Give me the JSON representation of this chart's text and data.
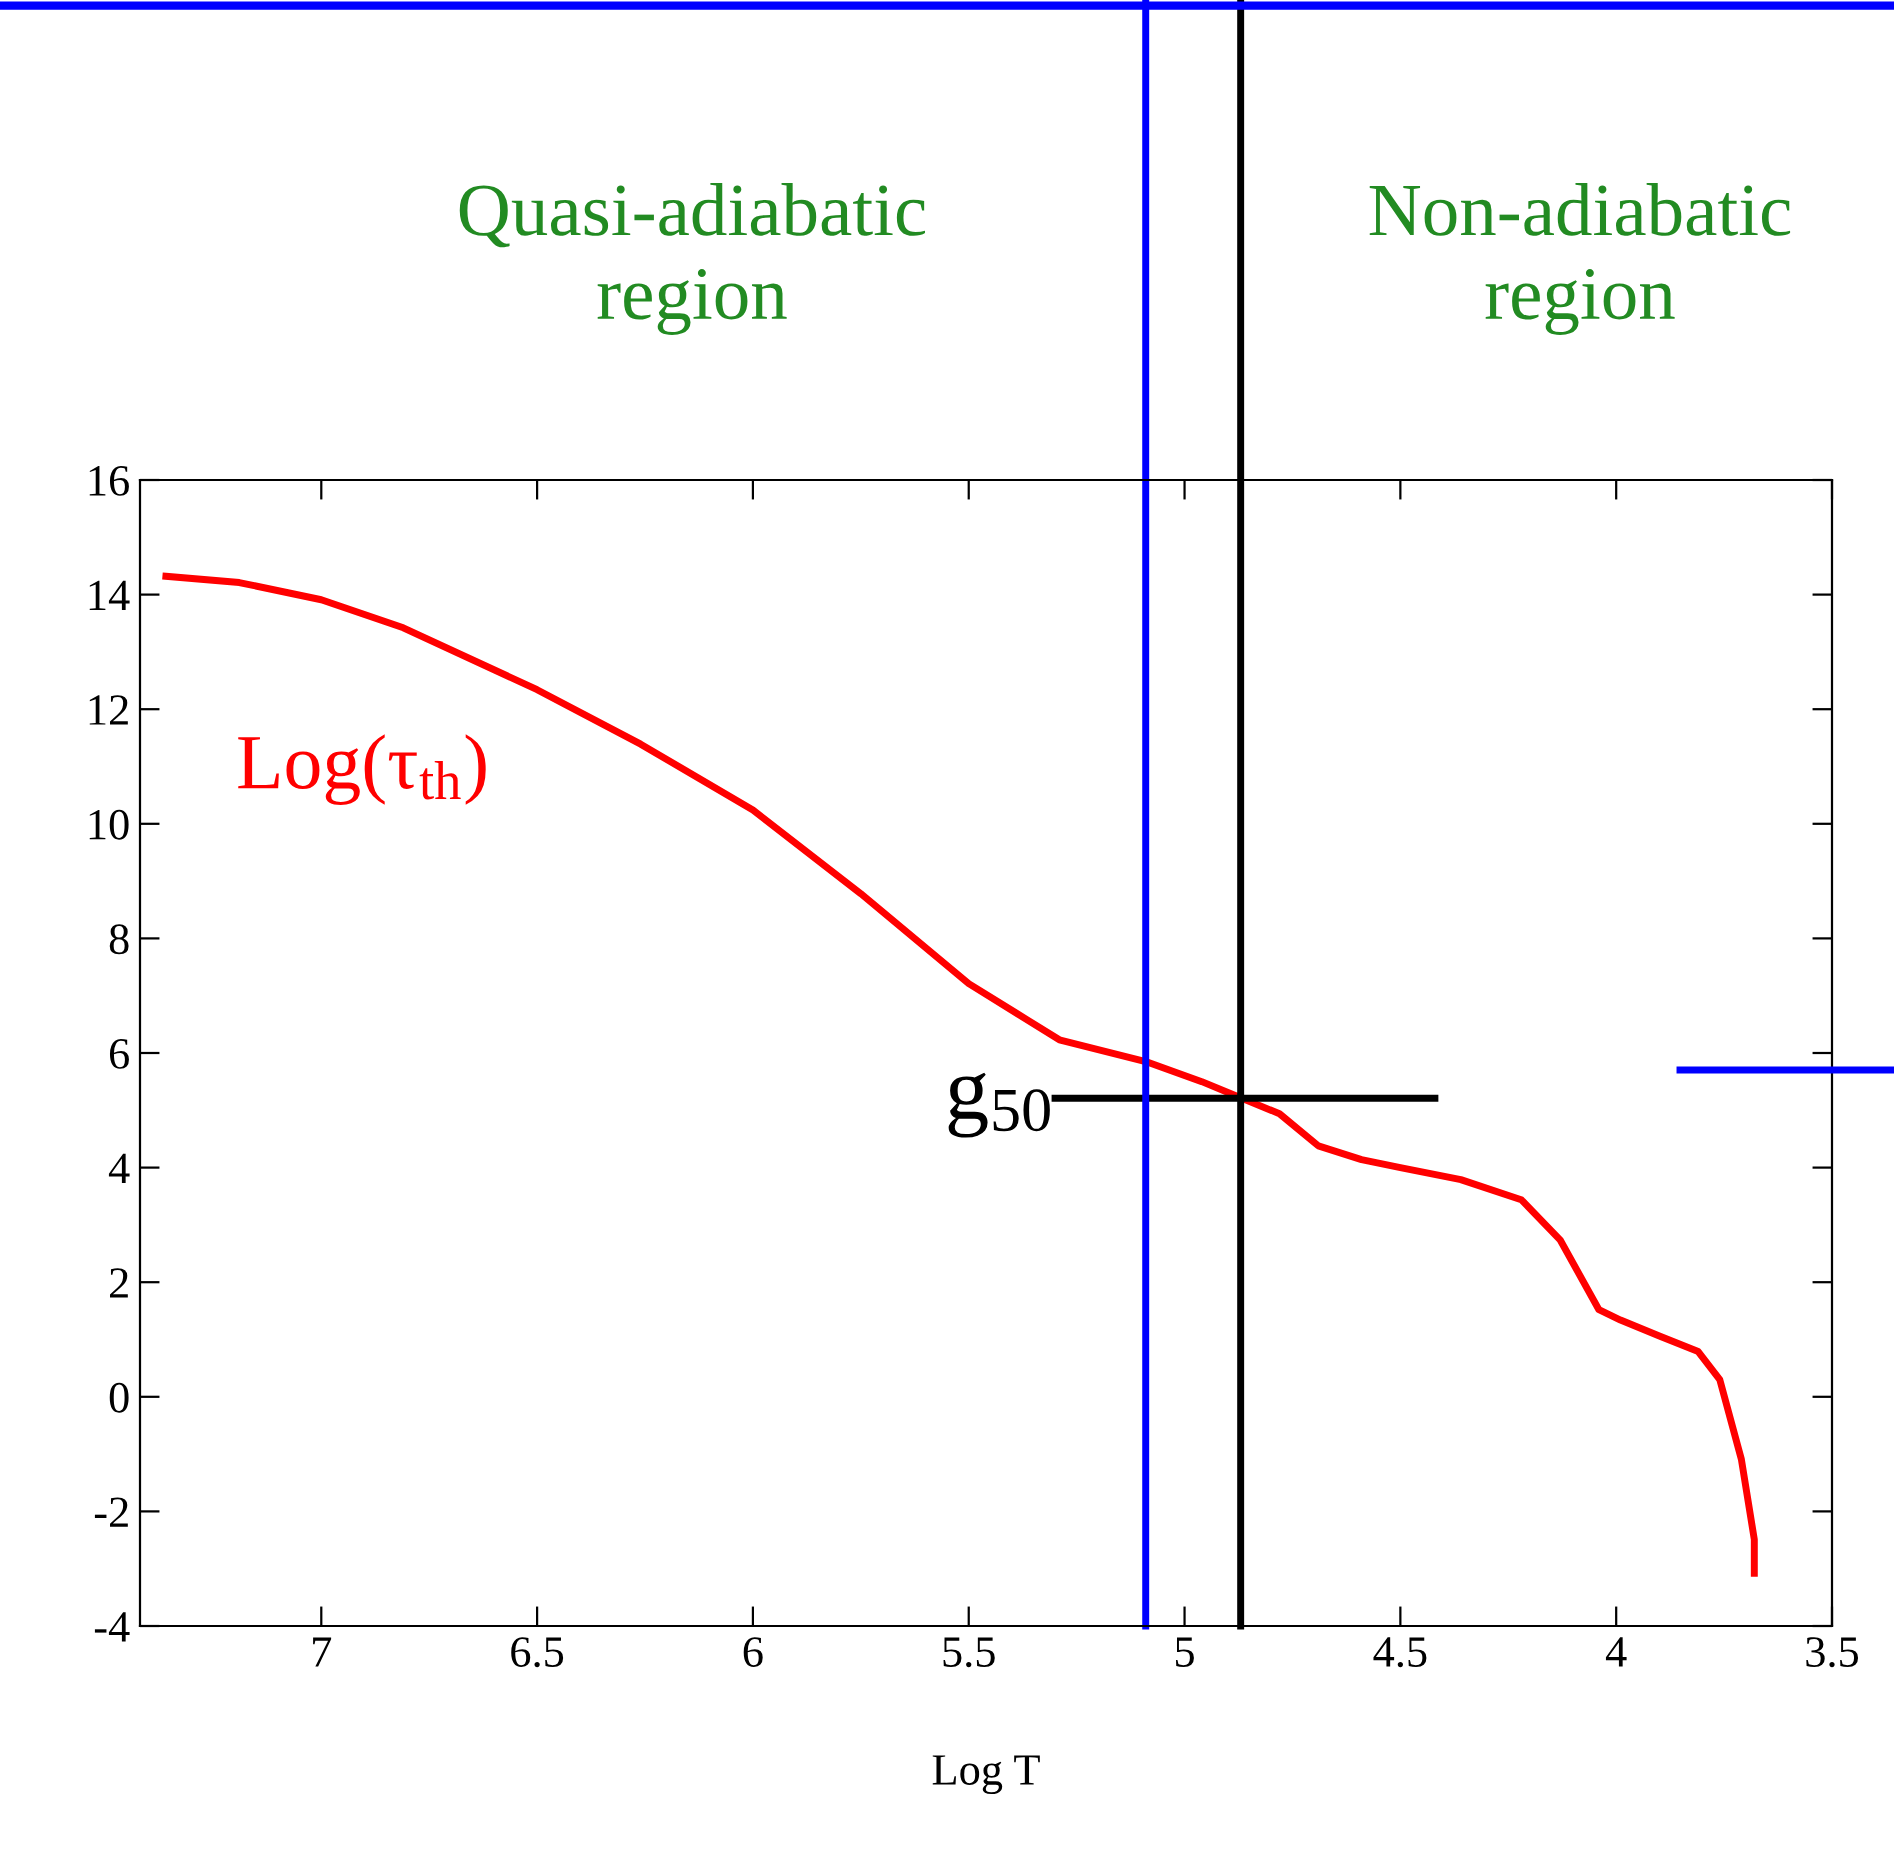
{
  "chart_data": {
    "type": "line",
    "xlabel": "Log T",
    "xlim": [
      7.42,
      3.5
    ],
    "xticks": [
      7,
      6.5,
      6,
      5.5,
      5,
      4.5,
      4,
      3.5
    ],
    "ylim": [
      -4,
      16
    ],
    "yticks": [
      -4,
      -2,
      0,
      2,
      4,
      6,
      8,
      10,
      12,
      14,
      16
    ],
    "grid": false,
    "legend": false,
    "series": [
      {
        "color": "#ff0000",
        "x": [
          7.36,
          7.19,
          7.0,
          6.81,
          6.5,
          6.26,
          6.0,
          5.75,
          5.5,
          5.29,
          5.09,
          4.96,
          4.87,
          4.78,
          4.69,
          4.59,
          4.5,
          4.36,
          4.22,
          4.13,
          4.04,
          3.99,
          3.9,
          3.81,
          3.76,
          3.71,
          3.68,
          3.68
        ],
        "values": [
          14.32,
          14.21,
          13.91,
          13.42,
          12.34,
          11.39,
          10.24,
          8.78,
          7.21,
          6.23,
          5.85,
          5.5,
          5.22,
          4.94,
          4.38,
          4.14,
          4.0,
          3.79,
          3.44,
          2.74,
          1.52,
          1.34,
          1.06,
          0.79,
          0.3,
          -1.09,
          -2.49,
          -3.08
        ]
      },
      {
        "color": "#000000",
        "x": [
          5.3,
          4.42
        ],
        "values": [
          5.21,
          5.21
        ]
      }
    ],
    "ref_lines": [
      {
        "axis": "x",
        "value": 5.09,
        "color": "#0000ff"
      },
      {
        "axis": "x",
        "value": 4.87,
        "color": "#000000"
      }
    ],
    "annotations": [
      "Quasi-adiabatic\nregion",
      "Non-adiabatic\nregion",
      "Log(τ$_{th}$)",
      {
        "text": "g$_{50}$",
        "x": 5.3,
        "y": 5.21
      }
    ]
  }
}
